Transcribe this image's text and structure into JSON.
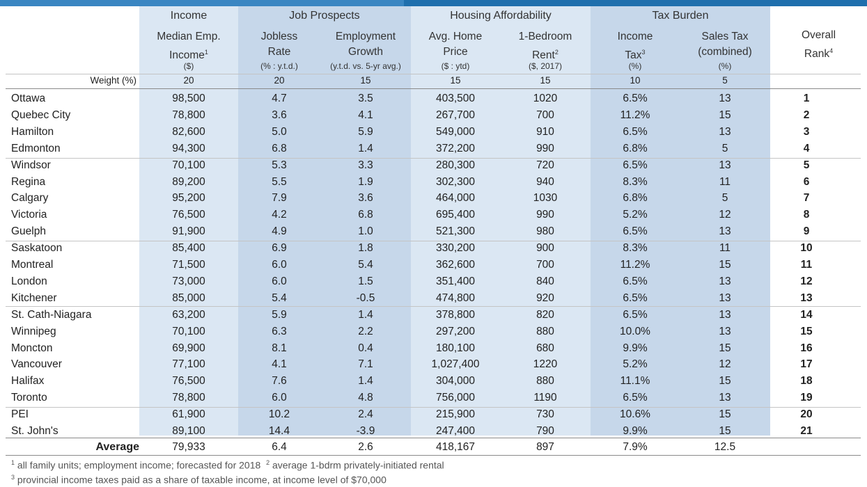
{
  "groups": {
    "income": "Income",
    "job": "Job Prospects",
    "housing": "Housing Affordability",
    "tax": "Tax Burden"
  },
  "columns": [
    {
      "l1": "Median Emp.",
      "l2": "Income",
      "sup": "1",
      "unit": "($)",
      "weight": "20"
    },
    {
      "l1": "Jobless",
      "l2": "Rate",
      "sup": "",
      "unit": "(% : y.t.d.)",
      "weight": "20"
    },
    {
      "l1": "Employment",
      "l2": "Growth",
      "sup": "",
      "unit": "(y.t.d. vs. 5-yr avg.)",
      "weight": "15"
    },
    {
      "l1": "Avg. Home",
      "l2": "Price",
      "sup": "",
      "unit": "($ : ytd)",
      "weight": "15"
    },
    {
      "l1": "1-Bedroom",
      "l2": "Rent",
      "sup": "2",
      "unit": "($, 2017)",
      "weight": "15"
    },
    {
      "l1": "Income",
      "l2": "Tax",
      "sup": "3",
      "unit": "(%)",
      "weight": "10"
    },
    {
      "l1": "Sales Tax",
      "l2": "(combined)",
      "sup": "",
      "unit": "(%)",
      "weight": "5"
    },
    {
      "l1": "Overall",
      "l2": "Rank",
      "sup": "4",
      "unit": "",
      "weight": ""
    }
  ],
  "weight_label": "Weight (%)",
  "rows": [
    [
      "Ottawa",
      "98,500",
      "4.7",
      "3.5",
      "403,500",
      "1020",
      "6.5%",
      "13",
      "1"
    ],
    [
      "Quebec City",
      "78,800",
      "3.6",
      "4.1",
      "267,700",
      "700",
      "11.2%",
      "15",
      "2"
    ],
    [
      "Hamilton",
      "82,600",
      "5.0",
      "5.9",
      "549,000",
      "910",
      "6.5%",
      "13",
      "3"
    ],
    [
      "Edmonton",
      "94,300",
      "6.8",
      "1.4",
      "372,200",
      "990",
      "6.8%",
      "5",
      "4"
    ],
    [
      "Windsor",
      "70,100",
      "5.3",
      "3.3",
      "280,300",
      "720",
      "6.5%",
      "13",
      "5"
    ],
    [
      "Regina",
      "89,200",
      "5.5",
      "1.9",
      "302,300",
      "940",
      "8.3%",
      "11",
      "6"
    ],
    [
      "Calgary",
      "95,200",
      "7.9",
      "3.6",
      "464,000",
      "1030",
      "6.8%",
      "5",
      "7"
    ],
    [
      "Victoria",
      "76,500",
      "4.2",
      "6.8",
      "695,400",
      "990",
      "5.2%",
      "12",
      "8"
    ],
    [
      "Guelph",
      "91,900",
      "4.9",
      "1.0",
      "521,300",
      "980",
      "6.5%",
      "13",
      "9"
    ],
    [
      "Saskatoon",
      "85,400",
      "6.9",
      "1.8",
      "330,200",
      "900",
      "8.3%",
      "11",
      "10"
    ],
    [
      "Montreal",
      "71,500",
      "6.0",
      "5.4",
      "362,600",
      "700",
      "11.2%",
      "15",
      "11"
    ],
    [
      "London",
      "73,000",
      "6.0",
      "1.5",
      "351,400",
      "840",
      "6.5%",
      "13",
      "12"
    ],
    [
      "Kitchener",
      "85,000",
      "5.4",
      "-0.5",
      "474,800",
      "920",
      "6.5%",
      "13",
      "13"
    ],
    [
      "St. Cath-Niagara",
      "63,200",
      "5.9",
      "1.4",
      "378,800",
      "820",
      "6.5%",
      "13",
      "14"
    ],
    [
      "Winnipeg",
      "70,100",
      "6.3",
      "2.2",
      "297,200",
      "880",
      "10.0%",
      "13",
      "15"
    ],
    [
      "Moncton",
      "69,900",
      "8.1",
      "0.4",
      "180,100",
      "680",
      "9.9%",
      "15",
      "16"
    ],
    [
      "Vancouver",
      "77,100",
      "4.1",
      "7.1",
      "1,027,400",
      "1220",
      "5.2%",
      "12",
      "17"
    ],
    [
      "Halifax",
      "76,500",
      "7.6",
      "1.4",
      "304,000",
      "880",
      "11.1%",
      "15",
      "18"
    ],
    [
      "Toronto",
      "78,800",
      "6.0",
      "4.8",
      "756,000",
      "1190",
      "6.5%",
      "13",
      "19"
    ],
    [
      "PEI",
      "61,900",
      "10.2",
      "2.4",
      "215,900",
      "730",
      "10.6%",
      "15",
      "20"
    ],
    [
      "St. John's",
      "89,100",
      "14.4",
      "-3.9",
      "247,400",
      "790",
      "9.9%",
      "15",
      "21"
    ]
  ],
  "average": {
    "label": "Average",
    "values": [
      "79,933",
      "6.4",
      "2.6",
      "418,167",
      "897",
      "7.9%",
      "12.5"
    ]
  },
  "footnotes": {
    "f1_mark": "1",
    "f1": "all family units; employment income; forecasted for 2018",
    "f2_mark": "2",
    "f2": "average 1-bdrm privately-initiated rental",
    "f3_mark": "3",
    "f3": "provincial income taxes paid as a share of taxable income, at income level of $70,000"
  },
  "colors": {
    "header_bar": "#1f6fad",
    "band_light": "#dbe7f3",
    "band_medium": "#c6d7ea"
  }
}
